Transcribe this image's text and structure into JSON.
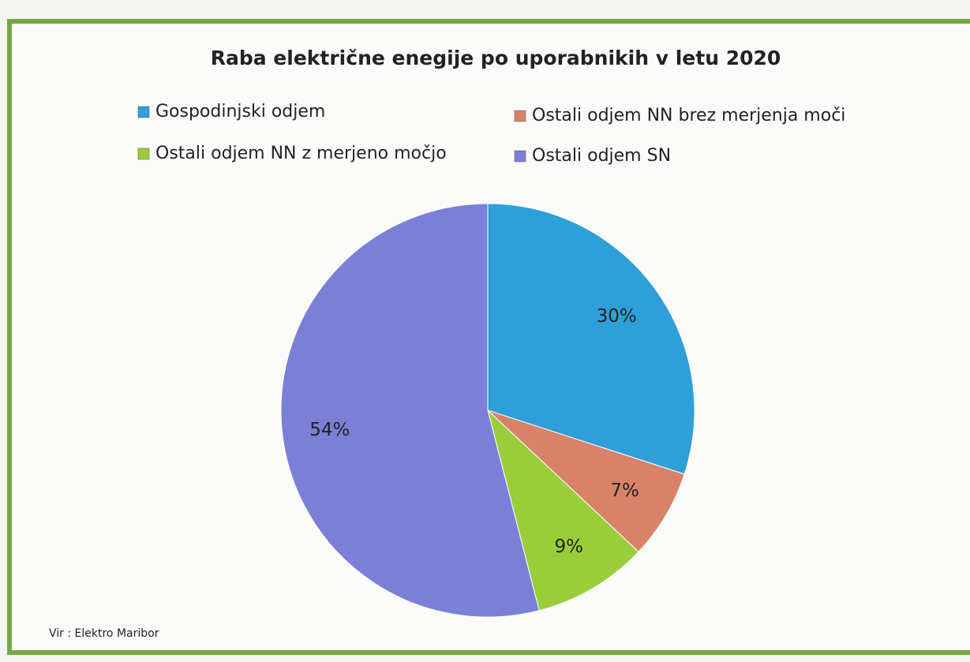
{
  "chart_data": {
    "type": "pie",
    "title": "Raba električne enegije po uporabnikih v letu 2020",
    "categories": [
      "Gospodinjski odjem",
      "Ostali odjem NN brez merjenja moči",
      "Ostali odjem NN z merjeno močjo",
      "Ostali odjem SN"
    ],
    "values": [
      30,
      7,
      9,
      54
    ],
    "value_labels": [
      "30%",
      "7%",
      "9%",
      "54%"
    ],
    "colors": [
      "#2e9fd8",
      "#d9826a",
      "#9acd3a",
      "#7b7fd6"
    ],
    "source": "Vir : Elektro Maribor"
  }
}
